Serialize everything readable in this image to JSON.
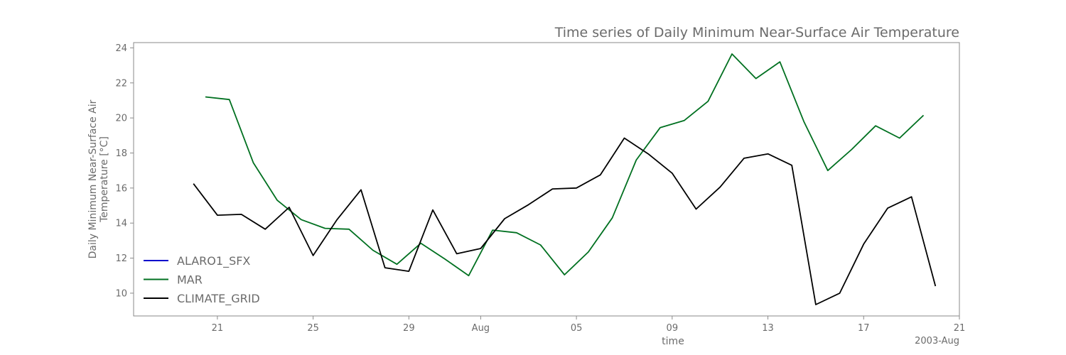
{
  "chart_data": {
    "type": "line",
    "title": "Time series of Daily Minimum Near-Surface Air Temperature",
    "xlabel": "time",
    "ylabel_lines": [
      "Daily Minimum Near-Surface Air",
      "Temperature [°C]"
    ],
    "x_offset_label": "2003-Aug",
    "xlim": [
      -1.5,
      33
    ],
    "ylim": [
      8.7,
      24.3
    ],
    "y_ticks": [
      10,
      12,
      14,
      16,
      18,
      20,
      22,
      24
    ],
    "x_ticks": [
      {
        "pos": 2,
        "label": "21"
      },
      {
        "pos": 6,
        "label": "25"
      },
      {
        "pos": 10,
        "label": "29"
      },
      {
        "pos": 13,
        "label": "Aug"
      },
      {
        "pos": 17,
        "label": "05"
      },
      {
        "pos": 21,
        "label": "09"
      },
      {
        "pos": 25,
        "label": "13"
      },
      {
        "pos": 29,
        "label": "17"
      },
      {
        "pos": 33,
        "label": "21"
      }
    ],
    "legend_position": "lower-left",
    "series": [
      {
        "name": "ALARO1_SFX",
        "color": "#0000cc",
        "x": [],
        "values": []
      },
      {
        "name": "MAR",
        "color": "#007020",
        "x": [
          1.5,
          2.5,
          3.5,
          4.5,
          5.5,
          6.5,
          7.5,
          8.5,
          9.5,
          10.5,
          11.5,
          12.5,
          13.5,
          14.5,
          15.5,
          16.5,
          17.5,
          18.5,
          19.5,
          20.5,
          21.5,
          22.5,
          23.5,
          24.5,
          25.5,
          26.5,
          27.5,
          28.5,
          29.5,
          30.5,
          31.5
        ],
        "values": [
          21.2,
          21.05,
          17.45,
          15.3,
          14.2,
          13.7,
          13.65,
          12.45,
          11.65,
          12.85,
          11.95,
          11.0,
          13.6,
          13.45,
          12.75,
          11.05,
          12.35,
          14.3,
          17.6,
          19.45,
          19.85,
          20.95,
          23.65,
          22.25,
          23.2,
          19.8,
          17.0,
          18.2,
          19.55,
          18.85,
          20.15
        ]
      },
      {
        "name": "CLIMATE_GRID",
        "color": "#000000",
        "x": [
          1,
          2,
          3,
          4,
          5,
          6,
          7,
          8,
          9,
          10,
          11,
          12,
          13,
          14,
          15,
          16,
          17,
          18,
          19,
          20,
          21,
          22,
          23,
          24,
          25,
          26,
          27,
          28,
          29,
          30,
          31,
          32
        ],
        "values": [
          16.25,
          14.45,
          14.5,
          13.65,
          14.9,
          12.15,
          14.2,
          15.9,
          11.45,
          11.25,
          14.75,
          12.25,
          12.55,
          14.25,
          15.05,
          15.95,
          16.0,
          16.75,
          18.85,
          17.95,
          16.85,
          14.8,
          16.05,
          17.7,
          17.95,
          17.3,
          9.35,
          10.0,
          12.8,
          14.85,
          15.5,
          10.4
        ]
      }
    ]
  }
}
